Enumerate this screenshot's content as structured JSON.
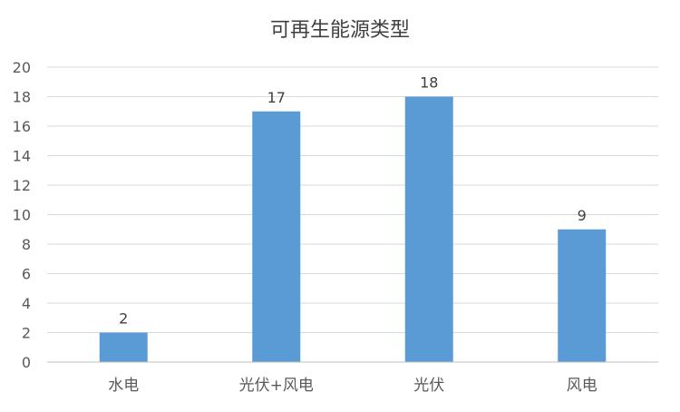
{
  "chart_data": {
    "type": "bar",
    "title": "可再生能源类型",
    "xlabel": "",
    "ylabel": "",
    "categories": [
      "水电",
      "光伏+风电",
      "光伏",
      "风电"
    ],
    "values": [
      2,
      17,
      18,
      9
    ],
    "ylim": [
      0,
      20
    ],
    "yticks": [
      0,
      2,
      4,
      6,
      8,
      10,
      12,
      14,
      16,
      18,
      20
    ],
    "grid": true,
    "legend": "none",
    "data_labels": true,
    "colors": {
      "bar": "#5b9bd5",
      "grid": "#d9d9d9",
      "axis": "#bfbfbf"
    }
  }
}
